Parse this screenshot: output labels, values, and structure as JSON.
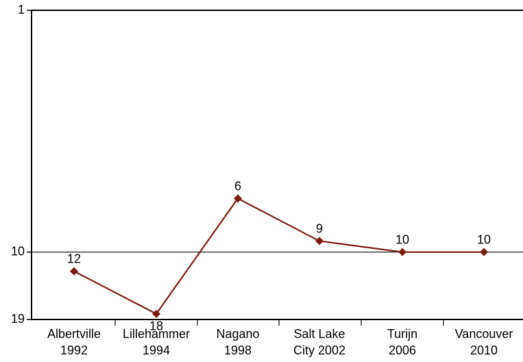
{
  "chart_data": {
    "type": "line",
    "title": "",
    "xlabel": "",
    "ylabel": "",
    "y_scale": "log",
    "y_inverted": true,
    "ylim": [
      1,
      19
    ],
    "grid": false,
    "reference_line": 10,
    "y_ticks": [
      {
        "value": 1,
        "label": "1"
      },
      {
        "value": 10,
        "label": "10"
      },
      {
        "value": 19,
        "label": "19"
      }
    ],
    "categories": [
      [
        "Albertville",
        "1992"
      ],
      [
        "Lillehammer",
        "1994"
      ],
      [
        "Nagano",
        "1998"
      ],
      [
        "Salt Lake",
        "City 2002"
      ],
      [
        "Turijn",
        "2006"
      ],
      [
        "Vancouver",
        "2010"
      ]
    ],
    "series": [
      {
        "values": [
          12,
          18,
          6,
          9,
          10,
          10
        ],
        "labels": [
          "12",
          "18",
          "6",
          "9",
          "10",
          "10"
        ],
        "color": "#7a1a0e"
      }
    ]
  }
}
